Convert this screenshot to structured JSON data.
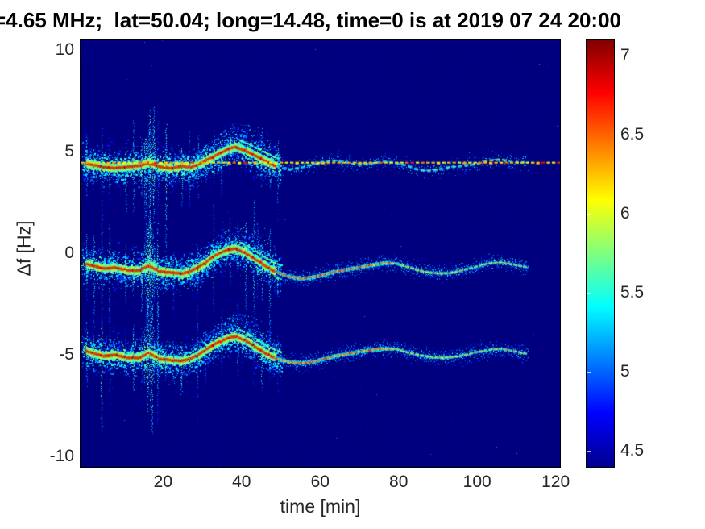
{
  "chart_data": {
    "type": "heatmap",
    "subtype": "doppler-spectrogram",
    "title": "=4.65 MHz;  lat=50.04; long=14.48, time=0 is at 2019 07 24 20:00",
    "xlabel": "time [min]",
    "ylabel": "Δf [Hz]",
    "xlim": [
      -1,
      121.1
    ],
    "ylim": [
      -10.5,
      10.5
    ],
    "xticks": [
      20,
      40,
      60,
      80,
      100,
      120
    ],
    "yticks": [
      10,
      5,
      0,
      -5,
      -10
    ],
    "grid": false,
    "colormap": "jet",
    "background_value": 4.4,
    "colorbar": {
      "position": "right",
      "range": [
        4.4,
        7.1
      ],
      "ticks": [
        7,
        6.5,
        6,
        5.5,
        5,
        4.5
      ]
    },
    "reference_line": {
      "f": 4.45,
      "style": "dashed",
      "intensity": 6.1,
      "t_start": -1,
      "t_end": 121.1
    },
    "noise": {
      "streak_period_min": 2.04,
      "noisy_region_t_end": 50,
      "burst_t_start": 15.3,
      "burst_t_end": 17.9
    },
    "traces": [
      {
        "name": "upper",
        "baseline": 4.45,
        "t_start": -0.5,
        "t_end": 113,
        "points": [
          [
            -0.5,
            4.45
          ],
          [
            2,
            4.35
          ],
          [
            5,
            4.22
          ],
          [
            8,
            4.18
          ],
          [
            11,
            4.25
          ],
          [
            14,
            4.3
          ],
          [
            16.5,
            4.45
          ],
          [
            19,
            4.25
          ],
          [
            22,
            4.18
          ],
          [
            25,
            4.28
          ],
          [
            27,
            4.2
          ],
          [
            29,
            4.35
          ],
          [
            31,
            4.55
          ],
          [
            33,
            4.75
          ],
          [
            35,
            4.95
          ],
          [
            37,
            5.15
          ],
          [
            38.5,
            5.22
          ],
          [
            40,
            5.1
          ],
          [
            42,
            4.95
          ],
          [
            44,
            4.75
          ],
          [
            46,
            4.55
          ],
          [
            48,
            4.35
          ],
          [
            50,
            4.2
          ],
          [
            52,
            4.1
          ],
          [
            55,
            4.2
          ],
          [
            58,
            4.35
          ],
          [
            61,
            4.5
          ],
          [
            64,
            4.55
          ],
          [
            67,
            4.45
          ],
          [
            70,
            4.35
          ],
          [
            73,
            4.4
          ],
          [
            76,
            4.5
          ],
          [
            79,
            4.45
          ],
          [
            82,
            4.3
          ],
          [
            85,
            4.1
          ],
          [
            88,
            4.05
          ],
          [
            91,
            4.15
          ],
          [
            94,
            4.25
          ],
          [
            97,
            4.3
          ],
          [
            100,
            4.4
          ],
          [
            103,
            4.55
          ],
          [
            106,
            4.6
          ],
          [
            109,
            4.5
          ],
          [
            113,
            4.45
          ]
        ]
      },
      {
        "name": "middle",
        "baseline": -0.7,
        "t_start": -0.5,
        "t_end": 113,
        "points": [
          [
            -0.5,
            -0.5
          ],
          [
            2,
            -0.6
          ],
          [
            5,
            -0.75
          ],
          [
            8,
            -0.7
          ],
          [
            11,
            -0.85
          ],
          [
            14,
            -0.85
          ],
          [
            16.5,
            -0.6
          ],
          [
            19,
            -0.9
          ],
          [
            22,
            -0.95
          ],
          [
            25,
            -1.0
          ],
          [
            27,
            -0.9
          ],
          [
            29,
            -0.7
          ],
          [
            31,
            -0.45
          ],
          [
            33,
            -0.15
          ],
          [
            35,
            0.05
          ],
          [
            37,
            0.18
          ],
          [
            38.5,
            0.22
          ],
          [
            40,
            0.1
          ],
          [
            42,
            -0.1
          ],
          [
            44,
            -0.35
          ],
          [
            46,
            -0.6
          ],
          [
            48,
            -0.85
          ],
          [
            50,
            -1.0
          ],
          [
            52,
            -1.15
          ],
          [
            55,
            -1.25
          ],
          [
            58,
            -1.2
          ],
          [
            61,
            -1.05
          ],
          [
            64,
            -0.9
          ],
          [
            67,
            -0.8
          ],
          [
            70,
            -0.7
          ],
          [
            73,
            -0.6
          ],
          [
            76,
            -0.5
          ],
          [
            79,
            -0.5
          ],
          [
            82,
            -0.65
          ],
          [
            85,
            -0.85
          ],
          [
            88,
            -0.95
          ],
          [
            91,
            -1.0
          ],
          [
            94,
            -0.95
          ],
          [
            97,
            -0.8
          ],
          [
            100,
            -0.65
          ],
          [
            103,
            -0.5
          ],
          [
            106,
            -0.45
          ],
          [
            109,
            -0.55
          ],
          [
            113,
            -0.7
          ]
        ]
      },
      {
        "name": "lower",
        "baseline": -5.0,
        "t_start": -0.5,
        "t_end": 113,
        "points": [
          [
            -0.5,
            -4.75
          ],
          [
            2,
            -4.9
          ],
          [
            5,
            -5.05
          ],
          [
            8,
            -5.0
          ],
          [
            11,
            -5.15
          ],
          [
            14,
            -5.15
          ],
          [
            16.5,
            -4.9
          ],
          [
            19,
            -5.2
          ],
          [
            22,
            -5.25
          ],
          [
            25,
            -5.3
          ],
          [
            27,
            -5.2
          ],
          [
            29,
            -5.0
          ],
          [
            31,
            -4.75
          ],
          [
            33,
            -4.5
          ],
          [
            35,
            -4.3
          ],
          [
            37,
            -4.15
          ],
          [
            38.5,
            -4.1
          ],
          [
            40,
            -4.2
          ],
          [
            42,
            -4.4
          ],
          [
            44,
            -4.65
          ],
          [
            46,
            -4.9
          ],
          [
            48,
            -5.1
          ],
          [
            50,
            -5.25
          ],
          [
            52,
            -5.35
          ],
          [
            55,
            -5.4
          ],
          [
            58,
            -5.35
          ],
          [
            61,
            -5.2
          ],
          [
            64,
            -5.05
          ],
          [
            67,
            -4.95
          ],
          [
            70,
            -4.85
          ],
          [
            73,
            -4.75
          ],
          [
            76,
            -4.7
          ],
          [
            79,
            -4.7
          ],
          [
            82,
            -4.85
          ],
          [
            85,
            -5.0
          ],
          [
            88,
            -5.1
          ],
          [
            91,
            -5.15
          ],
          [
            94,
            -5.1
          ],
          [
            97,
            -5.0
          ],
          [
            100,
            -4.85
          ],
          [
            103,
            -4.75
          ],
          [
            106,
            -4.7
          ],
          [
            109,
            -4.8
          ],
          [
            113,
            -4.95
          ]
        ]
      }
    ]
  }
}
